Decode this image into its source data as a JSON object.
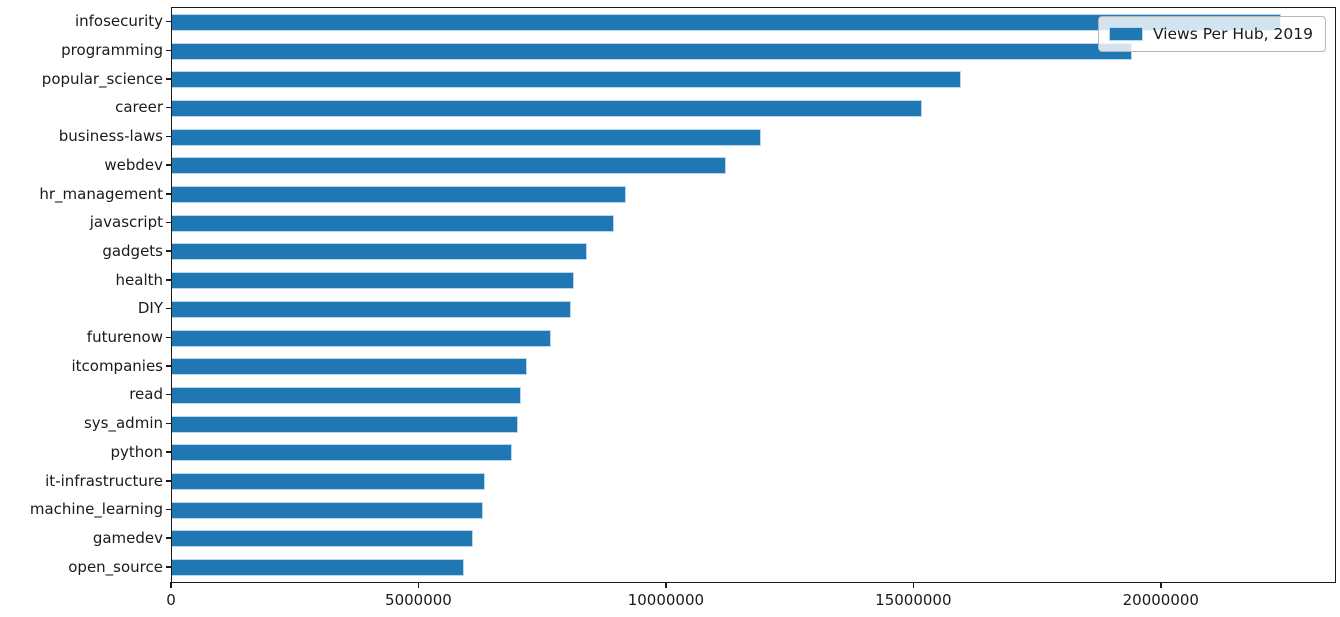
{
  "figure": {
    "background_color": "#ffffff",
    "spine_color": "#1a1a1a",
    "text_color": "#1a1a1a"
  },
  "legend": {
    "label": "Views Per Hub, 2019",
    "position": "upper right",
    "swatch_color": "#1f77b4"
  },
  "chart_data": {
    "type": "bar",
    "orientation": "horizontal",
    "title": "",
    "xlabel": "",
    "ylabel": "",
    "grid": false,
    "legend_label": "Views Per Hub, 2019",
    "bar_color": "#1f77b4",
    "bar_edge_color": "#bcd6ec",
    "xlim": [
      0,
      23500000
    ],
    "x_ticks": [
      0,
      5000000,
      10000000,
      15000000,
      20000000
    ],
    "x_tick_labels": [
      "0",
      "5000000",
      "10000000",
      "15000000",
      "20000000"
    ],
    "categories": [
      "infosecurity",
      "programming",
      "popular_science",
      "career",
      "business-laws",
      "webdev",
      "hr_management",
      "javascript",
      "gadgets",
      "health",
      "DIY",
      "futurenow",
      "itcompanies",
      "read",
      "sys_admin",
      "python",
      "it-infrastructure",
      "machine_learning",
      "gamedev",
      "open_source"
    ],
    "values": [
      22400000,
      19400000,
      15950000,
      15150000,
      11900000,
      11200000,
      9170000,
      8930000,
      8380000,
      8120000,
      8060000,
      7660000,
      7170000,
      7050000,
      6990000,
      6870000,
      6320000,
      6280000,
      6080000,
      5900000
    ]
  }
}
